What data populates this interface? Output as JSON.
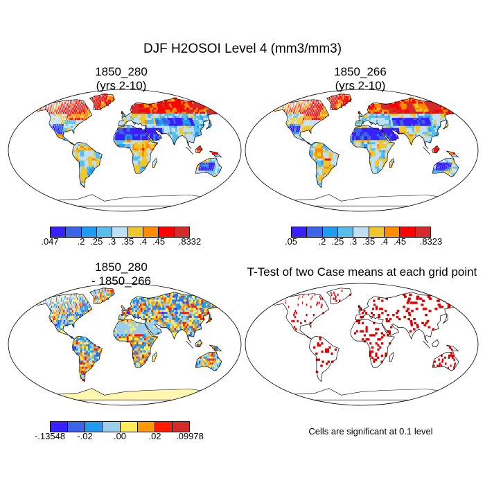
{
  "figure": {
    "title": "DJF H2OSOI Level 4 (mm3/mm3)",
    "panels": [
      {
        "id": "case1",
        "title_line1": "1850_280",
        "title_line2": "(yrs 2-10)",
        "colorbar": {
          "colors": [
            "#3a1fff",
            "#3d63e6",
            "#1f9bef",
            "#58bdea",
            "#bfe0f2",
            "#f0c62e",
            "#ff8c00",
            "#ff0000",
            "#d42a2a"
          ],
          "labels": [
            ".047",
            ".2",
            ".25",
            ".3",
            ".35",
            ".4",
            ".45",
            ".8332"
          ]
        }
      },
      {
        "id": "case2",
        "title_line1": "1850_266",
        "title_line2": "(yrs 2-10)",
        "colorbar": {
          "colors": [
            "#3a1fff",
            "#3d63e6",
            "#1f9bef",
            "#58bdea",
            "#bfe0f2",
            "#f0c62e",
            "#ff8c00",
            "#ff0000",
            "#d42a2a"
          ],
          "labels": [
            ".05",
            ".2",
            ".25",
            ".3",
            ".35",
            ".4",
            ".45",
            ".8323"
          ]
        }
      },
      {
        "id": "difference",
        "title_line1": "1850_280",
        "title_line2": "- 1850_266",
        "colorbar": {
          "colors": [
            "#3a1fff",
            "#3d63e6",
            "#1f9bef",
            "#9ccfee",
            "#ffec5a",
            "#ff9900",
            "#ff1a00",
            "#d42a2a"
          ],
          "labels": [
            "-.13548",
            "-.02",
            ".00",
            ".02",
            ".09978"
          ]
        }
      },
      {
        "id": "ttest",
        "title_line1": "T-Test of two Case means at each grid point",
        "note": "Cells are significant at 0.1 level"
      }
    ]
  }
}
